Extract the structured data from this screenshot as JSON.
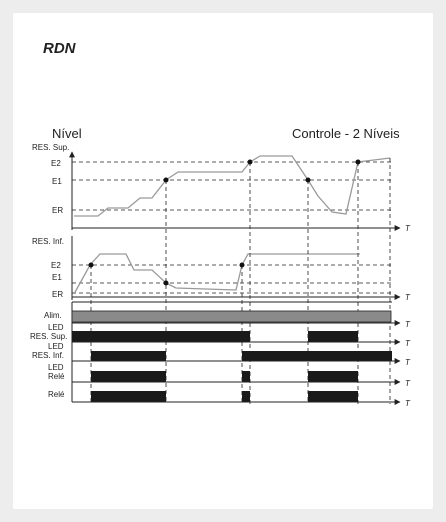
{
  "title": "RDN",
  "labels": {
    "nivel": "Nível",
    "controle": "Controle - 2 Níveis",
    "res_sup": "RES. Sup.",
    "res_inf": "RES. Inf.",
    "e2": "E2",
    "e1": "E1",
    "er": "ER",
    "t": "T",
    "alim": "Alim.",
    "led_res_sup_1": "LED",
    "led_res_sup_2": "RES. Sup.",
    "led_res_inf_1": "LED",
    "led_res_inf_2": "RES. Inf.",
    "led_rele_1": "LED",
    "led_rele_2": "Relé",
    "rele": "Relé"
  },
  "colors": {
    "background": "#ededed",
    "card": "#ffffff",
    "level_line": "#9a9a9a",
    "pulse": "#1a1a1a",
    "alim_bar": "#8a8a8a",
    "axis": "#222222"
  }
}
